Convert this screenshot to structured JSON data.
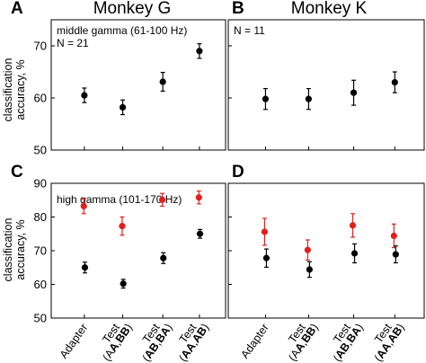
{
  "colors": {
    "black_series": "#000000",
    "red_series": "#e0201b"
  },
  "y_axis_label": [
    "classification",
    "accuracy, %"
  ],
  "chart_data": [
    {
      "panel": "A",
      "type": "scatter",
      "title": "Monkey G",
      "annotations": [
        "middle gamma (61-100 Hz)",
        "N = 21"
      ],
      "ylim": [
        50,
        75
      ],
      "yticks": [
        50,
        60,
        70
      ],
      "categories": [
        "Adapter",
        "Test (AA,BB)",
        "Test (AB,BA)",
        "Test (AA,AB)"
      ],
      "xtick_labels_visible": false,
      "series": [
        {
          "color": "black",
          "values": [
            60.5,
            58.2,
            63.1,
            69.0
          ],
          "errors": [
            1.4,
            1.4,
            1.8,
            1.4
          ]
        }
      ]
    },
    {
      "panel": "B",
      "type": "scatter",
      "title": "Monkey K",
      "annotations": [
        "N = 11"
      ],
      "ylim": [
        50,
        75
      ],
      "yticks": [
        50,
        60,
        70
      ],
      "categories": [
        "Adapter",
        "Test (AA,BB)",
        "Test (AB,BA)",
        "Test (AA,AB)"
      ],
      "xtick_labels_visible": false,
      "series": [
        {
          "color": "black",
          "values": [
            59.8,
            59.8,
            61.0,
            63.0
          ],
          "errors": [
            2.0,
            2.0,
            2.4,
            2.0
          ]
        }
      ]
    },
    {
      "panel": "C",
      "type": "scatter",
      "title": "",
      "annotations": [
        "high gamma (101-170 Hz)"
      ],
      "ylim": [
        50,
        90
      ],
      "yticks": [
        50,
        60,
        70,
        80,
        90
      ],
      "categories": [
        "Adapter",
        "Test (AA,BB)",
        "Test (AB,BA)",
        "Test (AA,AB)"
      ],
      "xtick_labels_visible": true,
      "series": [
        {
          "color": "red",
          "values": [
            83.2,
            77.3,
            85.1,
            85.8
          ],
          "errors": [
            2.2,
            2.7,
            1.9,
            1.9
          ]
        },
        {
          "color": "black",
          "values": [
            65.0,
            60.2,
            67.8,
            75.0
          ],
          "errors": [
            1.6,
            1.3,
            1.6,
            1.3
          ]
        }
      ]
    },
    {
      "panel": "D",
      "type": "scatter",
      "title": "",
      "annotations": [],
      "ylim": [
        50,
        90
      ],
      "yticks": [
        50,
        60,
        70,
        80,
        90
      ],
      "categories": [
        "Adapter",
        "Test (AA,BB)",
        "Test (AB,BA)",
        "Test (AA,AB)"
      ],
      "xtick_labels_visible": true,
      "series": [
        {
          "color": "red",
          "values": [
            75.6,
            70.2,
            77.5,
            74.4
          ],
          "errors": [
            4.0,
            3.0,
            3.5,
            3.5
          ]
        },
        {
          "color": "black",
          "values": [
            67.8,
            64.4,
            69.2,
            68.9
          ],
          "errors": [
            2.7,
            2.3,
            2.8,
            2.5
          ]
        }
      ]
    }
  ]
}
